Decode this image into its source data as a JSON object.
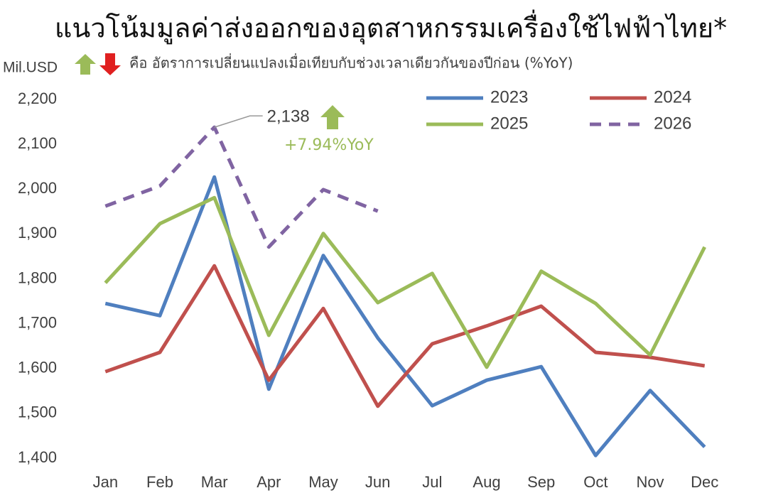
{
  "chart_data": {
    "type": "line",
    "title": "แนวโน้มมูลค่าส่งออกของอุตสาหกรรมเครื่องใช้ไฟฟ้าไทย*",
    "y_label": "Mil.USD",
    "subtitle": "คือ อัตราการเปลี่ยนแปลงเมื่อเทียบกับช่วงเวลาเดียวกันของปีก่อน (%YoY)",
    "categories": [
      "Jan",
      "Feb",
      "Mar",
      "Apr",
      "May",
      "Jun",
      "Jul",
      "Aug",
      "Sep",
      "Oct",
      "Nov",
      "Dec"
    ],
    "series": [
      {
        "name": "2023",
        "color": "#4f7fbf",
        "values": [
          1745,
          1718,
          2027,
          1554,
          1852,
          1668,
          1517,
          1574,
          1604,
          1406,
          1551,
          1425
        ]
      },
      {
        "name": "2024",
        "color": "#c0504d",
        "values": [
          1593,
          1636,
          1829,
          1574,
          1734,
          1516,
          1655,
          1695,
          1739,
          1636,
          1625,
          1606
        ]
      },
      {
        "name": "2025",
        "color": "#9bbb59",
        "values": [
          1791,
          1923,
          1981,
          1674,
          1901,
          1747,
          1812,
          1603,
          1817,
          1745,
          1630,
          1871
        ]
      },
      {
        "name": "2026",
        "color": "#8064a2",
        "dashed": true,
        "values": [
          1962,
          2007,
          2138,
          1871,
          1999,
          1951,
          null,
          null,
          null,
          null,
          null,
          null
        ]
      }
    ],
    "annotation": {
      "text": "2,138",
      "change": "+7.94%YoY"
    },
    "ylim": [
      1400,
      2200
    ],
    "yticks": [
      {
        "value": 1400,
        "label": "1,400"
      },
      {
        "value": 1500,
        "label": "1,500"
      },
      {
        "value": 1600,
        "label": "1,600"
      },
      {
        "value": 1700,
        "label": "1,700"
      },
      {
        "value": 1800,
        "label": "1,800"
      },
      {
        "value": 1900,
        "label": "1,900"
      },
      {
        "value": 2000,
        "label": "2,000"
      },
      {
        "value": 2100,
        "label": "2,100"
      },
      {
        "value": 2200,
        "label": "2,200"
      }
    ],
    "grid": false
  }
}
